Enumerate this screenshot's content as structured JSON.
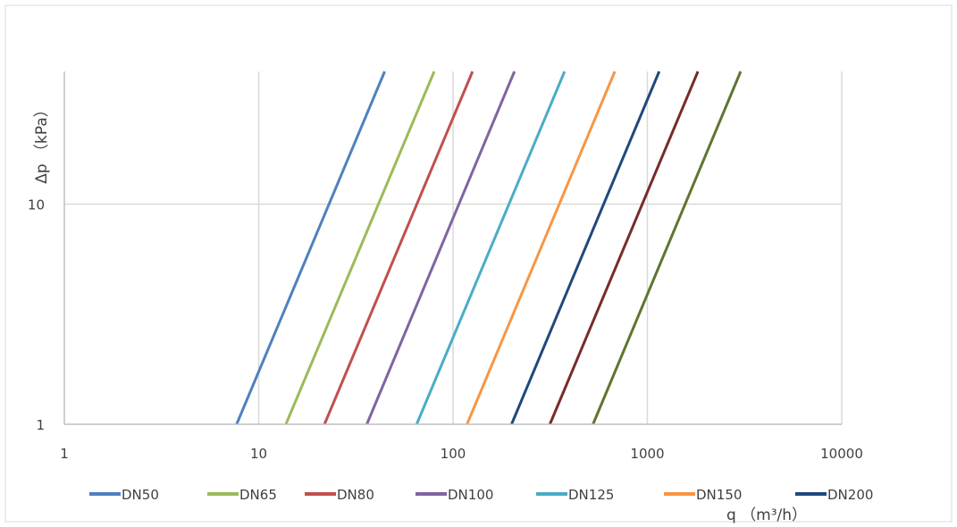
{
  "chart_data": {
    "type": "line",
    "x_scale": "log",
    "y_scale": "log",
    "xlim": [
      1,
      10000
    ],
    "ylim": [
      1,
      40
    ],
    "x_ticks": [
      "1",
      "10",
      "100",
      "1000",
      "10000"
    ],
    "y_ticks": [
      "1",
      "10"
    ],
    "xlabel": "q （m³/h）",
    "ylabel": "Δp （kPa）",
    "grid": true,
    "legend_position": "bottom",
    "legend": [
      "DN50",
      "DN65",
      "DN80",
      "DN100",
      "DN125",
      "DN150",
      "DN200"
    ],
    "series": [
      {
        "name": "DN50",
        "color": "#4f81bd",
        "x": [
          7.7,
          44.5
        ],
        "y": [
          1,
          40
        ]
      },
      {
        "name": "DN65",
        "color": "#9bbb59",
        "x": [
          13.8,
          80.0
        ],
        "y": [
          1,
          40
        ]
      },
      {
        "name": "DN80",
        "color": "#c0504d",
        "x": [
          21.8,
          126.0
        ],
        "y": [
          1,
          40
        ]
      },
      {
        "name": "DN100",
        "color": "#8064a2",
        "x": [
          36.0,
          207.0
        ],
        "y": [
          1,
          40
        ]
      },
      {
        "name": "DN125",
        "color": "#4bacc6",
        "x": [
          65.0,
          375.0
        ],
        "y": [
          1,
          40
        ]
      },
      {
        "name": "DN150",
        "color": "#f79646",
        "x": [
          118.0,
          680.0
        ],
        "y": [
          1,
          40
        ]
      },
      {
        "name": "DN200",
        "color": "#1f497d",
        "x": [
          200.0,
          1150.0
        ],
        "y": [
          1,
          40
        ]
      },
      {
        "name": "",
        "color": "#772c2a",
        "x": [
          315.0,
          1820.0
        ],
        "y": [
          1,
          40
        ]
      },
      {
        "name": "",
        "color": "#5f7530",
        "x": [
          525.0,
          3020.0
        ],
        "y": [
          1,
          40
        ]
      }
    ]
  }
}
